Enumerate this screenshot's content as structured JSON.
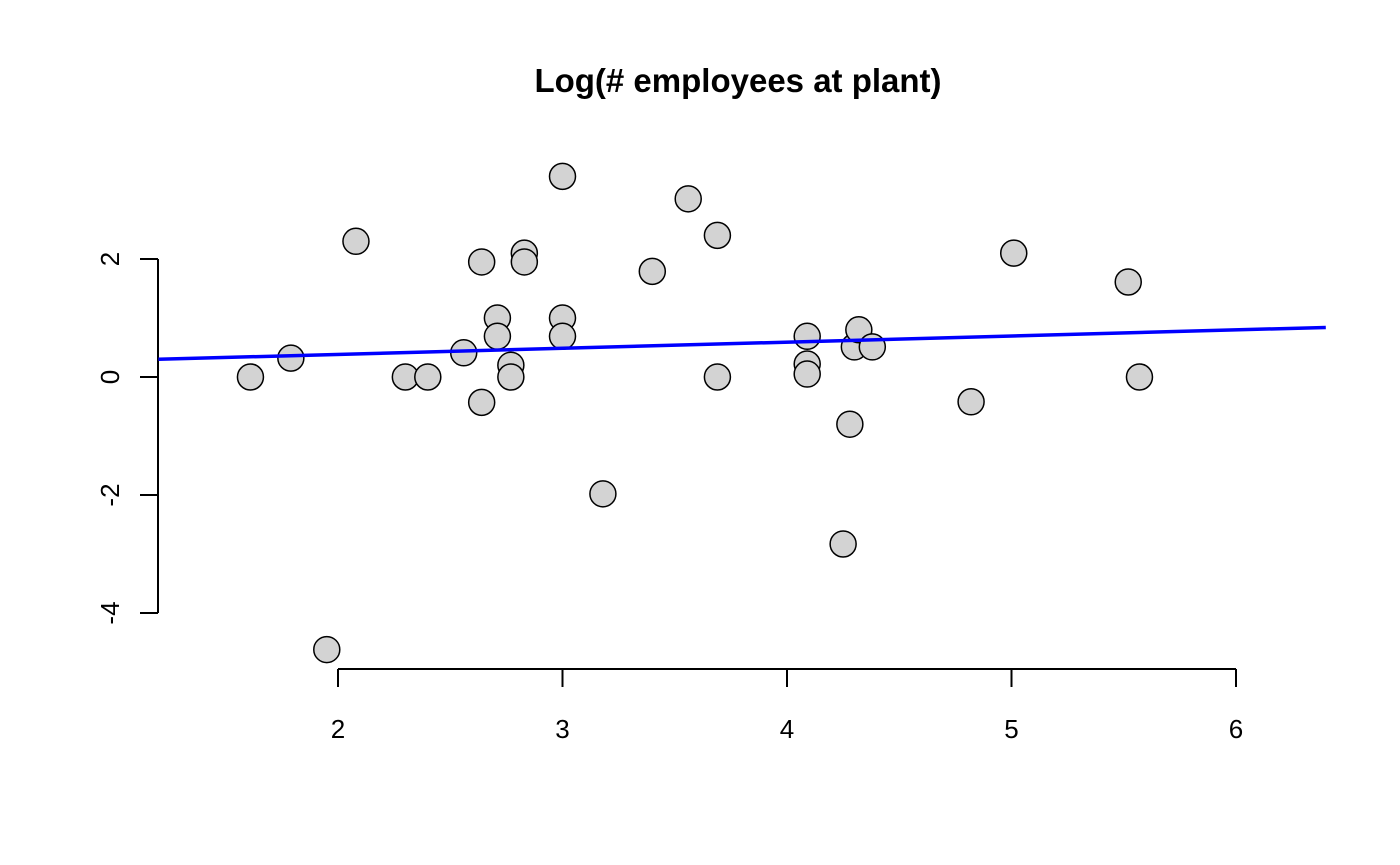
{
  "chart_data": {
    "type": "scatter",
    "title": "Log(# employees at plant)",
    "xlabel": "",
    "ylabel": "",
    "xlim": [
      1.2,
      6.4
    ],
    "ylim": [
      -4.9,
      3.6
    ],
    "x_ticks": [
      2,
      3,
      4,
      5,
      6
    ],
    "y_ticks": [
      -4,
      -2,
      0,
      2
    ],
    "x_tick_labels": [
      "2",
      "3",
      "4",
      "5",
      "6"
    ],
    "y_tick_labels": [
      "-4",
      "-2",
      "0",
      "2"
    ],
    "grid": false,
    "legend": "none",
    "point_color": "#d3d3d3",
    "line_color": "#0000ff",
    "points": [
      {
        "x": 1.61,
        "y": 0.0
      },
      {
        "x": 1.79,
        "y": 0.32
      },
      {
        "x": 1.95,
        "y": -4.62
      },
      {
        "x": 2.08,
        "y": 2.3
      },
      {
        "x": 2.3,
        "y": 0.0
      },
      {
        "x": 2.4,
        "y": 0.0
      },
      {
        "x": 2.56,
        "y": 0.41
      },
      {
        "x": 2.64,
        "y": 1.95
      },
      {
        "x": 2.64,
        "y": -0.43
      },
      {
        "x": 2.71,
        "y": 1.0
      },
      {
        "x": 2.71,
        "y": 0.69
      },
      {
        "x": 2.77,
        "y": 0.2
      },
      {
        "x": 2.77,
        "y": 0.0
      },
      {
        "x": 2.83,
        "y": 2.1
      },
      {
        "x": 2.83,
        "y": 1.95
      },
      {
        "x": 3.0,
        "y": 3.4
      },
      {
        "x": 3.0,
        "y": 1.0
      },
      {
        "x": 3.0,
        "y": 0.69
      },
      {
        "x": 3.18,
        "y": -1.98
      },
      {
        "x": 3.4,
        "y": 1.79
      },
      {
        "x": 3.56,
        "y": 3.02
      },
      {
        "x": 3.69,
        "y": 2.4
      },
      {
        "x": 3.69,
        "y": 0.0
      },
      {
        "x": 4.09,
        "y": 0.69
      },
      {
        "x": 4.09,
        "y": 0.22
      },
      {
        "x": 4.09,
        "y": 0.05
      },
      {
        "x": 4.25,
        "y": -2.83
      },
      {
        "x": 4.28,
        "y": -0.8
      },
      {
        "x": 4.3,
        "y": 0.51
      },
      {
        "x": 4.32,
        "y": 0.8
      },
      {
        "x": 4.38,
        "y": 0.51
      },
      {
        "x": 4.82,
        "y": -0.42
      },
      {
        "x": 5.01,
        "y": 2.1
      },
      {
        "x": 5.52,
        "y": 1.61
      },
      {
        "x": 5.57,
        "y": 0.0
      }
    ],
    "fit_line": {
      "x": [
        1.2,
        6.4
      ],
      "y": [
        0.3,
        0.84
      ]
    }
  }
}
